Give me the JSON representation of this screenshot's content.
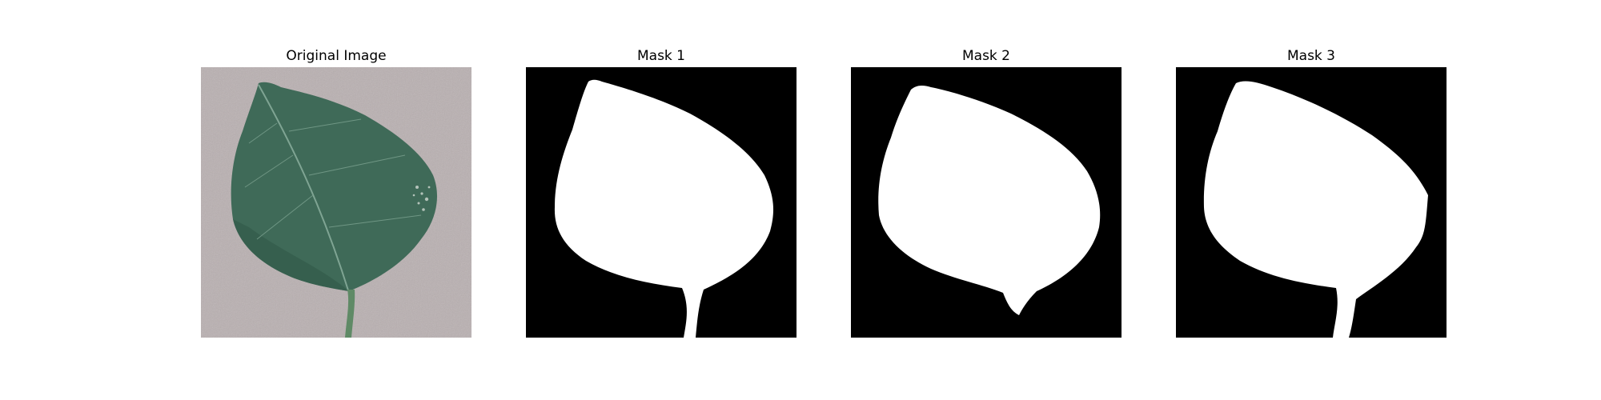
{
  "panels": [
    {
      "title": "Original Image",
      "kind": "photo"
    },
    {
      "title": "Mask 1",
      "kind": "mask",
      "variant": 1
    },
    {
      "title": "Mask 2",
      "kind": "mask",
      "variant": 2
    },
    {
      "title": "Mask 3",
      "kind": "mask",
      "variant": 3
    }
  ],
  "colors": {
    "background_photo": "#b8afaf",
    "leaf": "#3f6a58",
    "leaf_dark": "#2f5646",
    "vein": "#7fa493",
    "mask_bg": "#000000",
    "mask_fg": "#ffffff",
    "figure_bg": "#ffffff"
  }
}
